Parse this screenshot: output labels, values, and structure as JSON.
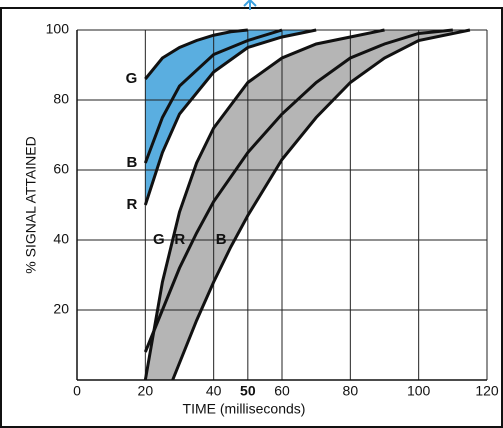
{
  "chart_data": {
    "type": "line",
    "xlabel": "TIME (milliseconds)",
    "ylabel": "% SIGNAL ATTAINED",
    "xlim": [
      0,
      120
    ],
    "ylim": [
      0,
      100
    ],
    "xticks": [
      0,
      20,
      40,
      50,
      60,
      80,
      100,
      120
    ],
    "yticks": [
      20,
      40,
      60,
      80,
      100
    ],
    "highlight_xtick": 50,
    "grid": true,
    "series": [
      {
        "name": "G",
        "color": "#111111",
        "x": [
          20,
          25,
          30,
          35,
          40,
          45,
          50
        ],
        "values": [
          86,
          92,
          95,
          97,
          98.5,
          99.5,
          100
        ]
      },
      {
        "name": "B",
        "color": "#111111",
        "x": [
          20,
          25,
          30,
          40,
          50,
          60
        ],
        "values": [
          62,
          75,
          84,
          93,
          97,
          100
        ]
      },
      {
        "name": "R",
        "color": "#111111",
        "x": [
          20,
          25,
          30,
          40,
          50,
          60,
          70
        ],
        "values": [
          50,
          65,
          76,
          88,
          95,
          98,
          100
        ]
      },
      {
        "name": "G",
        "color": "#111111",
        "x": [
          20,
          25,
          30,
          35,
          40,
          50,
          60,
          70,
          80,
          90
        ],
        "values": [
          0,
          28,
          48,
          62,
          72,
          85,
          92,
          96,
          98,
          100
        ]
      },
      {
        "name": "R",
        "color": "#111111",
        "x": [
          20,
          25,
          30,
          35,
          40,
          50,
          60,
          70,
          80,
          90,
          100,
          110
        ],
        "values": [
          8,
          20,
          32,
          42,
          51,
          65,
          76,
          85,
          92,
          96,
          99,
          100
        ]
      },
      {
        "name": "B",
        "color": "#111111",
        "x": [
          28,
          35,
          40,
          45,
          50,
          60,
          70,
          80,
          90,
          100,
          110,
          115
        ],
        "values": [
          0,
          17,
          28,
          38,
          47,
          63,
          75,
          85,
          92,
          97,
          99,
          100
        ]
      }
    ],
    "bands": [
      {
        "series": [
          0,
          2
        ],
        "color": "#5aaee0"
      },
      {
        "series": [
          3,
          5
        ],
        "color": "#b5b5b5"
      }
    ]
  }
}
